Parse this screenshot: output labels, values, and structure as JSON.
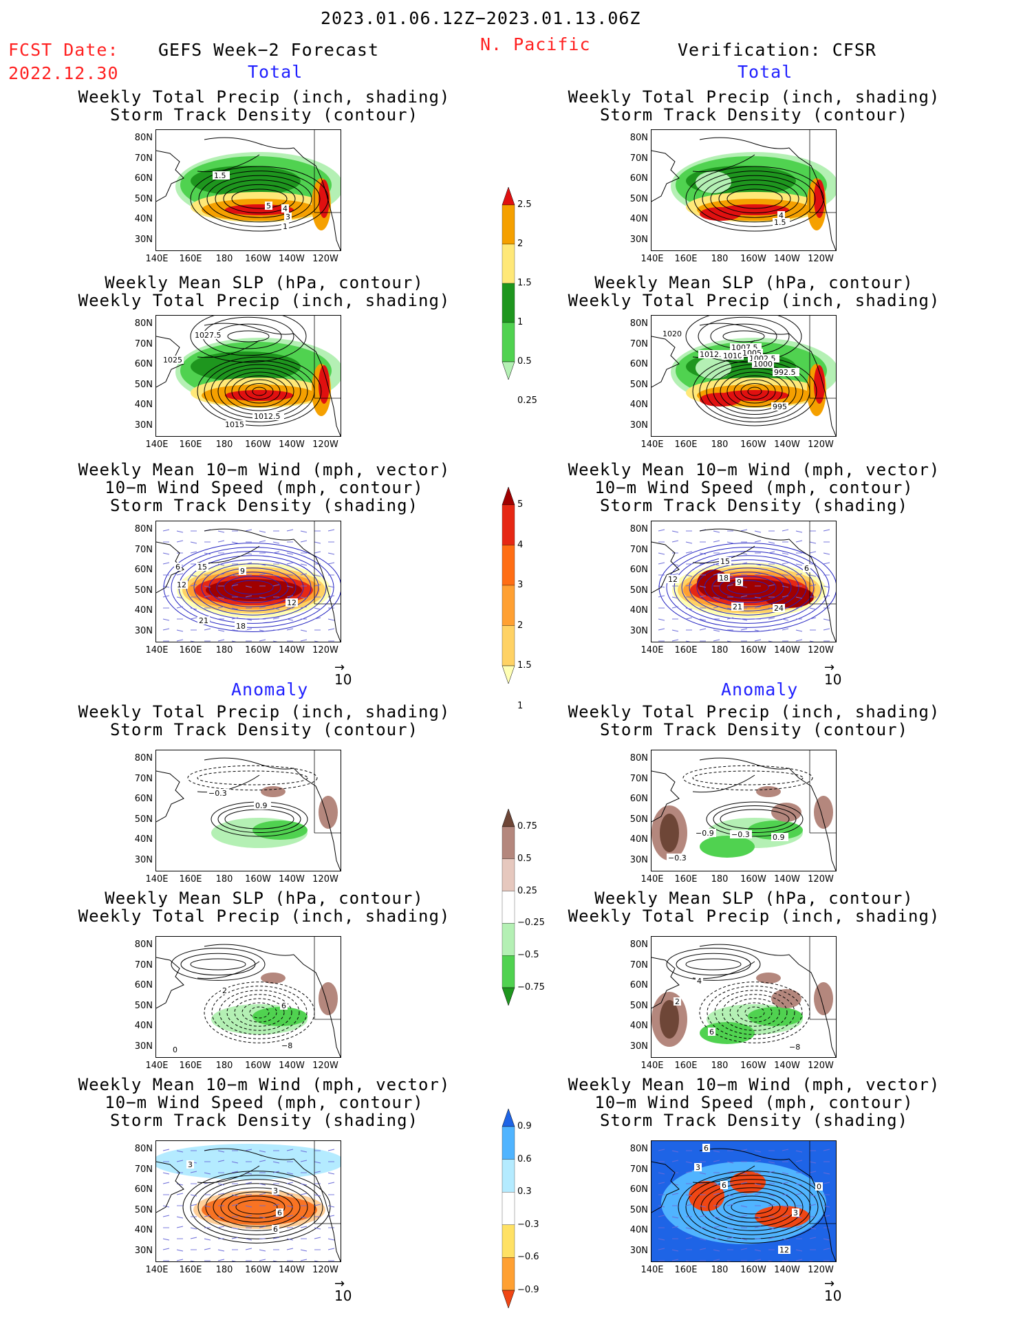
{
  "header": {
    "date_range": "2023.01.06.12Z−2023.01.13.06Z",
    "fcst_label": "FCST Date:",
    "fcst_date": "2022.12.30",
    "left_title": "GEFS Week−2 Forecast",
    "region": "N. Pacific",
    "right_title": "Verification: CFSR"
  },
  "sections": {
    "total": "Total",
    "anomaly": "Anomaly"
  },
  "panel_titles": {
    "precip_storm": [
      "Weekly Total Precip (inch, shading)",
      "Storm Track Density (contour)"
    ],
    "slp_precip": [
      "Weekly Mean SLP (hPa, contour)",
      "Weekly Total Precip (inch, shading)"
    ],
    "wind_storm": [
      "Weekly Mean 10−m Wind (mph, vector)",
      "10−m Wind Speed (mph, contour)",
      "Storm Track Density (shading)"
    ]
  },
  "axes": {
    "lat_ticks": [
      "80N",
      "70N",
      "60N",
      "50N",
      "40N",
      "30N"
    ],
    "lon_ticks": [
      "140E",
      "160E",
      "180",
      "160W",
      "140W",
      "120W"
    ]
  },
  "vector_ref": "10",
  "colorbars": {
    "precip_total": {
      "levels": [
        "0.25",
        "0.5",
        "1",
        "1.5",
        "2",
        "2.5"
      ],
      "colors": [
        "#b4f0b4",
        "#50d250",
        "#1e961e",
        "#ffe878",
        "#f5a000",
        "#e01010"
      ]
    },
    "storm_total": {
      "levels": [
        "1",
        "1.5",
        "2",
        "3",
        "4",
        "5"
      ],
      "colors": [
        "#ffffb4",
        "#ffd264",
        "#ffa032",
        "#ff6e14",
        "#e62814",
        "#a00000"
      ]
    },
    "precip_anom": {
      "levels": [
        "0.75",
        "0.5",
        "0.25",
        "−0.25",
        "−0.5",
        "−0.75"
      ],
      "colors": [
        "#1e961e",
        "#50d250",
        "#b4f0b4",
        "#ffffff",
        "#e6c8be",
        "#b4877d",
        "#6e4637"
      ]
    },
    "storm_anom": {
      "levels": [
        "0.9",
        "0.6",
        "0.3",
        "−0.3",
        "−0.6",
        "−0.9"
      ],
      "colors": [
        "#f04614",
        "#ffa032",
        "#ffe164",
        "#ffffff",
        "#b4ebff",
        "#50b4ff",
        "#1e64e6"
      ]
    }
  },
  "map_labels": {
    "L1": [
      "1.5",
      "5",
      "4",
      "3",
      "1"
    ],
    "R1": [
      "4",
      "1.5"
    ],
    "L2": [
      "1027.5",
      "1025",
      "1015",
      "1012.5"
    ],
    "R2": [
      "1020",
      "1012.5",
      "1010",
      "1007.5",
      "1005",
      "1002.5",
      "1000",
      "992.5",
      "995"
    ],
    "L3": [
      "6",
      "15",
      "12",
      "9",
      "12",
      "21",
      "18"
    ],
    "R3": [
      "15",
      "18",
      "12",
      "9",
      "21",
      "24",
      "6"
    ],
    "L4": [
      "−0.3",
      "0.9"
    ],
    "R4": [
      "−0.9",
      "−0.3",
      "0.9",
      "−0.3"
    ],
    "L5": [
      "2",
      "6",
      "0",
      "−8"
    ],
    "R5": [
      "4",
      "2",
      "6",
      "−8"
    ],
    "L6": [
      "3",
      "3",
      "6",
      "6"
    ],
    "R6": [
      "6",
      "3",
      "6",
      "3",
      "0",
      "12"
    ]
  }
}
